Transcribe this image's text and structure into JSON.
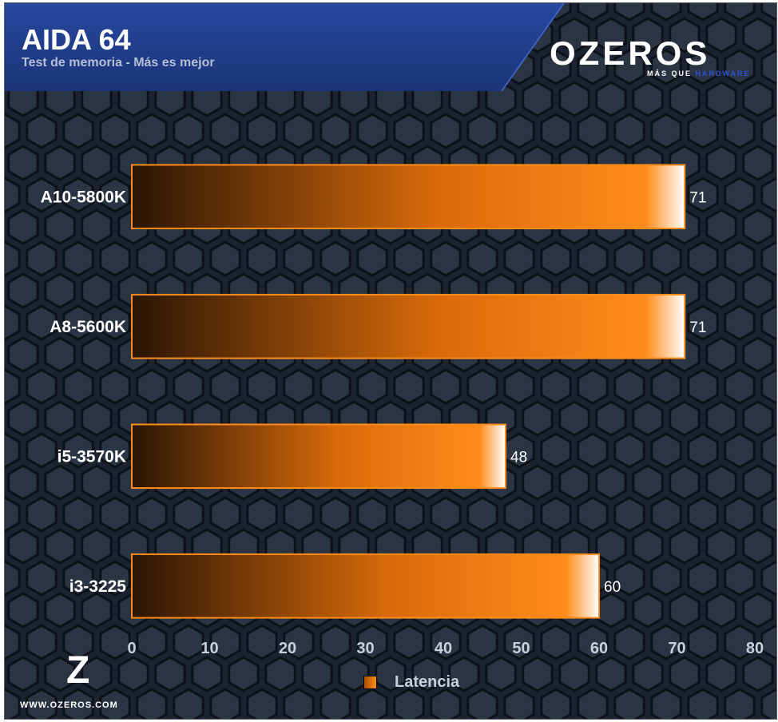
{
  "header": {
    "title": "AIDA 64",
    "subtitle": "Test de memoria - Más es mejor"
  },
  "logo": {
    "wordmark": "OZEROS",
    "tagline": "MÁS QUE",
    "tagline_accent": "HARDWARE",
    "site": "WWW.OZEROS.COM"
  },
  "colors": {
    "bar_start": "#2a1505",
    "bar_mid": "#d86a0a",
    "bar_bright": "#ff8c1a",
    "header_bg": "#1f3c8c",
    "panel_bg": "#1b2330"
  },
  "chart_data": {
    "type": "bar",
    "orientation": "horizontal",
    "categories": [
      "A10-5800K",
      "A8-5600K",
      "i5-3570K",
      "i3-3225"
    ],
    "series": [
      {
        "name": "Latencia",
        "values": [
          71,
          71,
          48,
          60
        ]
      }
    ],
    "xlim": [
      0,
      80
    ],
    "xticks": [
      "0",
      "10",
      "20",
      "30",
      "40",
      "50",
      "60",
      "70",
      "80"
    ],
    "grid": false,
    "legend": "bottom-center"
  }
}
